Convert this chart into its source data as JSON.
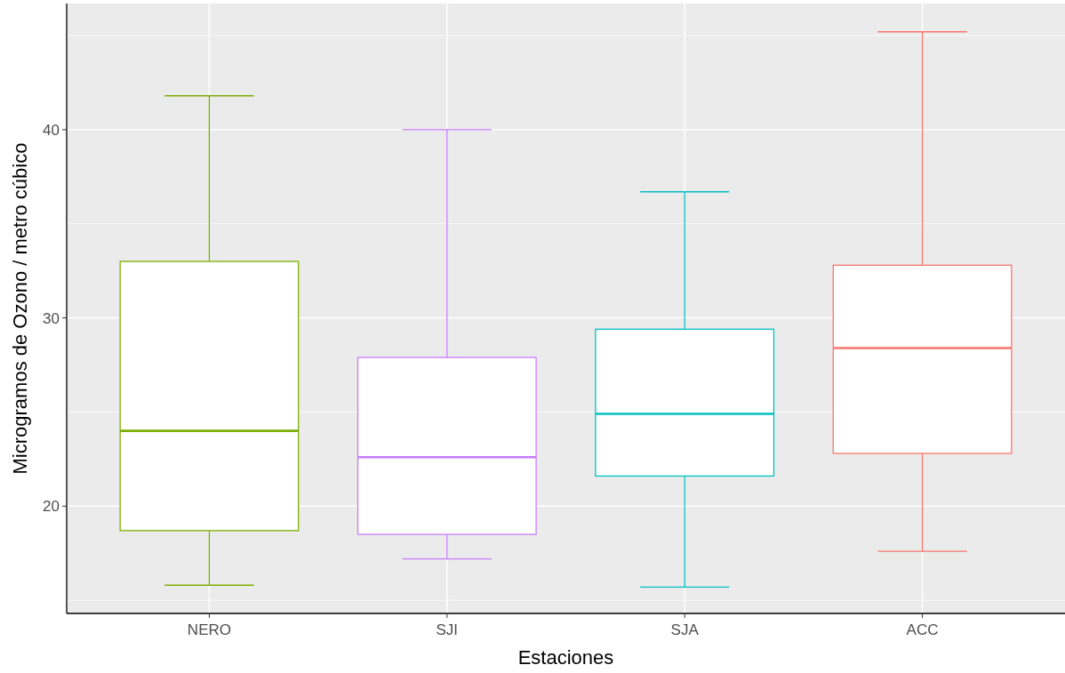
{
  "chart_data": {
    "type": "box",
    "xlabel": "Estaciones",
    "ylabel": "Microgramos de Ozono / metro cúbico",
    "categories": [
      "NERO",
      "SJI",
      "SJA",
      "ACC"
    ],
    "colors": [
      "#7cae00",
      "#c77cff",
      "#00bfc4",
      "#f8766d"
    ],
    "boxes": [
      {
        "low": 15.8,
        "q1": 18.7,
        "median": 24.0,
        "q3": 33.0,
        "high": 41.8
      },
      {
        "low": 17.2,
        "q1": 18.5,
        "median": 22.6,
        "q3": 27.9,
        "high": 40.0
      },
      {
        "low": 15.7,
        "q1": 21.6,
        "median": 24.9,
        "q3": 29.4,
        "high": 36.7
      },
      {
        "low": 17.6,
        "q1": 22.8,
        "median": 28.4,
        "q3": 32.8,
        "high": 45.2
      }
    ],
    "ylim": [
      14.3,
      46.7
    ],
    "yticks": [
      {
        "value": 15,
        "label": null
      },
      20,
      {
        "value": 25,
        "label": null
      },
      30,
      {
        "value": 35,
        "label": null
      },
      40,
      {
        "value": 45,
        "label": null
      }
    ],
    "grid": true
  }
}
